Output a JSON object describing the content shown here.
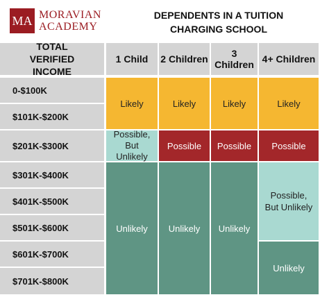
{
  "logo": {
    "monogram": "MA",
    "name_line1": "MORAVIAN",
    "name_line2": "ACADEMY"
  },
  "header": {
    "title": "DEPENDENTS IN A TUITION CHARGING SCHOOL",
    "row_header": "TOTAL VERIFIED INCOME",
    "columns": [
      "1 Child",
      "2 Children",
      "3 Children",
      "4+ Children"
    ]
  },
  "rows": [
    "0-$100K",
    "$101K-$200K",
    "$201K-$300K",
    "$301K-$400K",
    "$401K-$500K",
    "$501K-$600K",
    "$601K-$700K",
    "$701K-$800K"
  ],
  "cells": [
    "Likely",
    "Likely",
    "Likely",
    "Likely",
    "Possible, But Unlikely",
    "Possible",
    "Possible",
    "Possible",
    "Unlikely",
    "Unlikely",
    "Unlikely",
    "Possible, But Unlikely",
    "Unlikely"
  ]
}
